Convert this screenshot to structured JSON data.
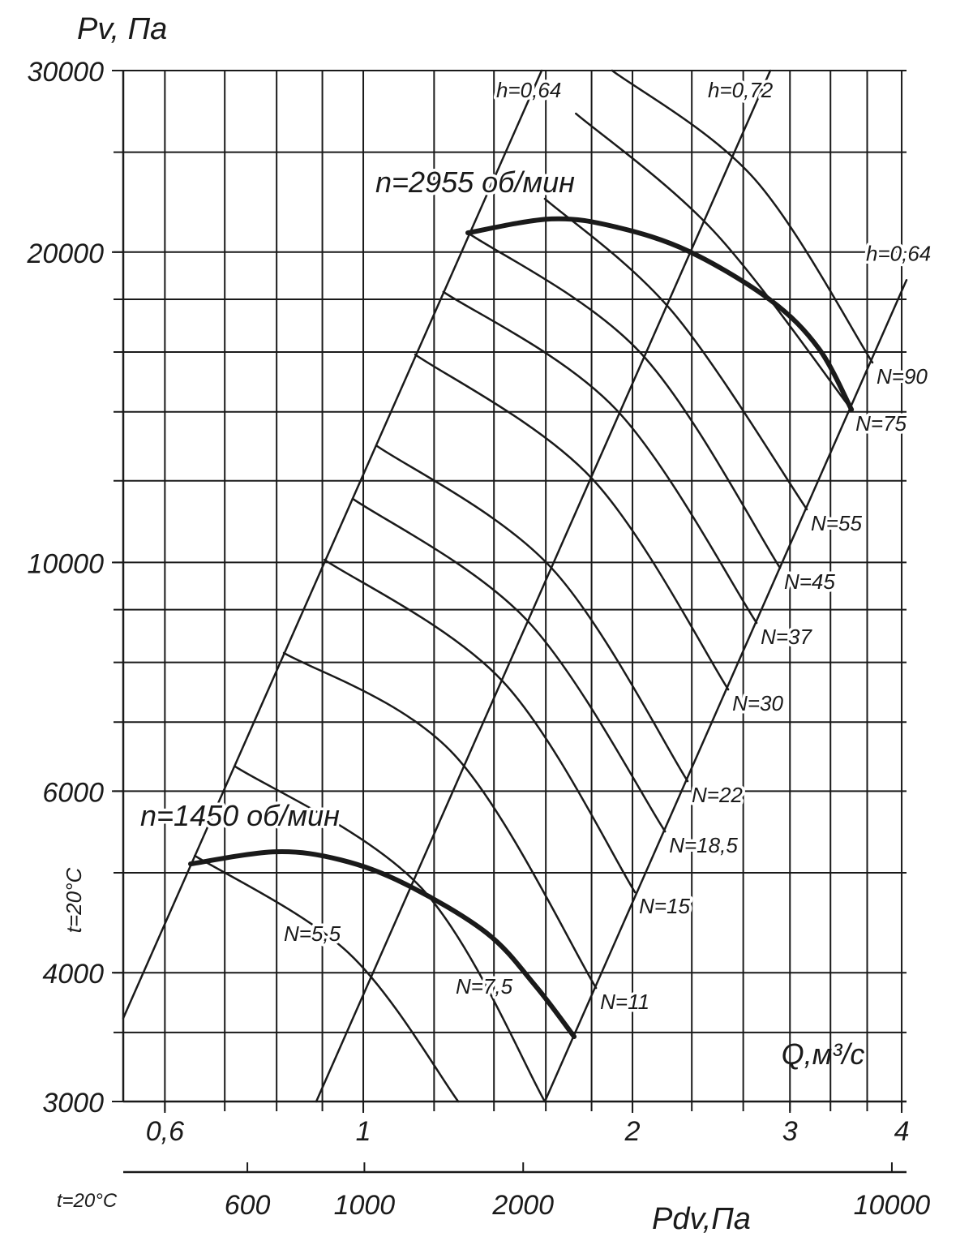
{
  "chart_data": {
    "type": "line",
    "ylabel": "Pv, Па",
    "xlabel": "Q,м³/с",
    "x2label": "Pdv,Па",
    "note": "t=20°C",
    "log_x": true,
    "log_y": true,
    "xlim": [
      0.539,
      4.05
    ],
    "ylim": [
      3000,
      30000
    ],
    "xticks": [
      {
        "value": 0.6,
        "label": "0,6"
      },
      1,
      2,
      3,
      4
    ],
    "yticks": [
      3000,
      4000,
      6000,
      10000,
      20000,
      30000
    ],
    "xgrid": [
      0.6,
      0.7,
      0.8,
      0.9,
      1,
      1.2,
      1.4,
      1.6,
      1.8,
      2,
      2.33,
      2.66,
      3,
      3.33,
      3.66,
      4
    ],
    "ygrid": [
      3000,
      3500,
      4000,
      5000,
      6000,
      7000,
      8000,
      9000,
      10000,
      12000,
      14000,
      16000,
      18000,
      20000,
      25000,
      30000
    ],
    "x2lim": [
      349,
      10660
    ],
    "x2ticks": [
      600,
      1000,
      2000,
      10000
    ],
    "grid": true,
    "series": [
      {
        "name": "n=1450 об/мин",
        "color": "#1a1a1a",
        "linewidth": 6,
        "x": [
          0.641,
          0.798,
          0.943,
          1.115,
          1.373,
          1.557,
          1.721
        ],
        "values": [
          5100,
          5240,
          5147,
          4875,
          4373,
          3887,
          3468
        ]
      },
      {
        "name": "n=2955 об/мин",
        "color": "#1a1a1a",
        "linewidth": 6,
        "x": [
          1.309,
          1.623,
          1.918,
          2.314,
          2.852,
          3.232,
          3.515
        ],
        "values": [
          20880,
          21540,
          21150,
          20030,
          17970,
          16120,
          14070
        ]
      },
      {
        "name": "h=0,64",
        "color": "#1a1a1a",
        "linewidth": 2.5,
        "x": [
          0.539,
          1.583
        ],
        "values": [
          3614,
          30000
        ]
      },
      {
        "name": "h=0,72",
        "color": "#1a1a1a",
        "linewidth": 2.5,
        "x": [
          0.886,
          2.852
        ],
        "values": [
          3000,
          30000
        ]
      },
      {
        "name": "h=0,64",
        "color": "#1a1a1a",
        "linewidth": 2.5,
        "x": [
          1.596,
          4.05
        ],
        "values": [
          3000,
          18790
        ]
      },
      {
        "name": "N=5,5",
        "color": "#1a1a1a",
        "linewidth": 2.5,
        "x": [
          0.648,
          0.963,
          1.277
        ],
        "values": [
          5195,
          4180,
          3000
        ]
      },
      {
        "name": "N=7,5",
        "color": "#1a1a1a",
        "linewidth": 2.5,
        "x": [
          0.719,
          1.162,
          1.596
        ],
        "values": [
          6340,
          4831,
          3000
        ]
      },
      {
        "name": "N=11",
        "color": "#1a1a1a",
        "linewidth": 2.5,
        "x": [
          0.815,
          1.263,
          1.821
        ],
        "values": [
          8170,
          6513,
          3866
        ]
      },
      {
        "name": "N=15",
        "color": "#1a1a1a",
        "linewidth": 2.5,
        "x": [
          0.905,
          1.432,
          2.013
        ],
        "values": [
          10060,
          7668,
          4787
        ]
      },
      {
        "name": "N=18,5",
        "color": "#1a1a1a",
        "linewidth": 2.5,
        "x": [
          0.973,
          1.525,
          2.175
        ],
        "values": [
          11530,
          8785,
          5484
        ]
      },
      {
        "name": "N=22",
        "color": "#1a1a1a",
        "linewidth": 2.5,
        "x": [
          1.036,
          1.623,
          2.305
        ],
        "values": [
          12970,
          9880,
          6136
        ]
      },
      {
        "name": "N=30",
        "color": "#1a1a1a",
        "linewidth": 2.5,
        "x": [
          1.143,
          1.802,
          2.559
        ],
        "values": [
          15910,
          12060,
          7530
        ]
      },
      {
        "name": "N=37",
        "color": "#1a1a1a",
        "linewidth": 2.5,
        "x": [
          1.229,
          1.918,
          2.753
        ],
        "values": [
          18300,
          14070,
          8737
        ]
      },
      {
        "name": "N=45",
        "color": "#1a1a1a",
        "linewidth": 2.5,
        "x": [
          1.309,
          2.042,
          2.924
        ],
        "values": [
          20880,
          15970,
          9880
        ]
      },
      {
        "name": "N=55",
        "color": "#1a1a1a",
        "linewidth": 2.5,
        "x": [
          1.596,
          2.22,
          3.133
        ],
        "values": [
          22530,
          17480,
          11260
        ]
      },
      {
        "name": "N=75",
        "color": "#1a1a1a",
        "linewidth": 2.5,
        "x": [
          1.729,
          2.465,
          3.515
        ],
        "values": [
          27250,
          20960,
          14070
        ]
      },
      {
        "name": "N=90",
        "color": "#1a1a1a",
        "linewidth": 2.5,
        "x": [
          1.898,
          2.735,
          3.71
        ],
        "values": [
          30000,
          23580,
          15630
        ]
      }
    ]
  }
}
